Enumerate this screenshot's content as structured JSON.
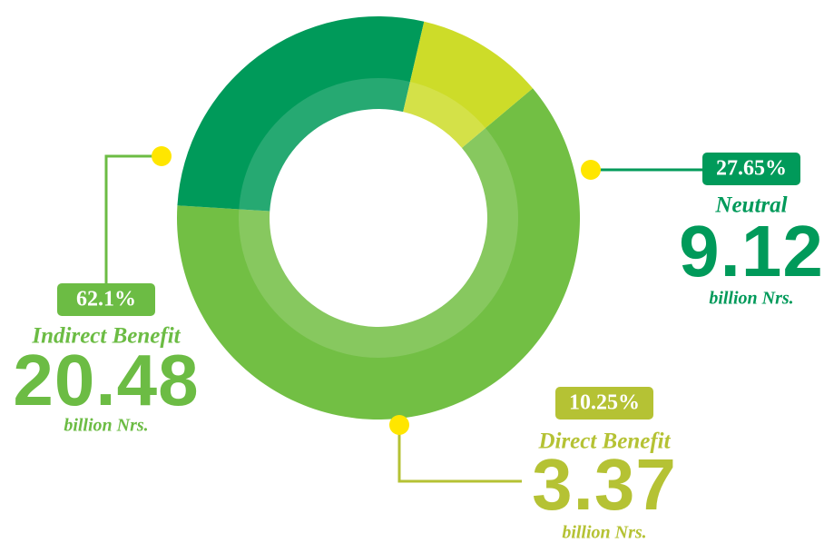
{
  "chart_data": {
    "type": "pie",
    "donut": true,
    "categories": [
      "Indirect Benefit",
      "Neutral",
      "Direct Benefit"
    ],
    "values": [
      62.1,
      27.65,
      10.25
    ],
    "value_labels": [
      "62.1%",
      "27.65%",
      "10.25%"
    ],
    "amounts": [
      20.48,
      9.12,
      3.37
    ],
    "unit": "billion Nrs.",
    "colors": [
      "#72bf44",
      "#009a5a",
      "#cddc29"
    ],
    "label_colors": [
      "#6cbc44",
      "#009a5a",
      "#b5c234"
    ]
  }
}
